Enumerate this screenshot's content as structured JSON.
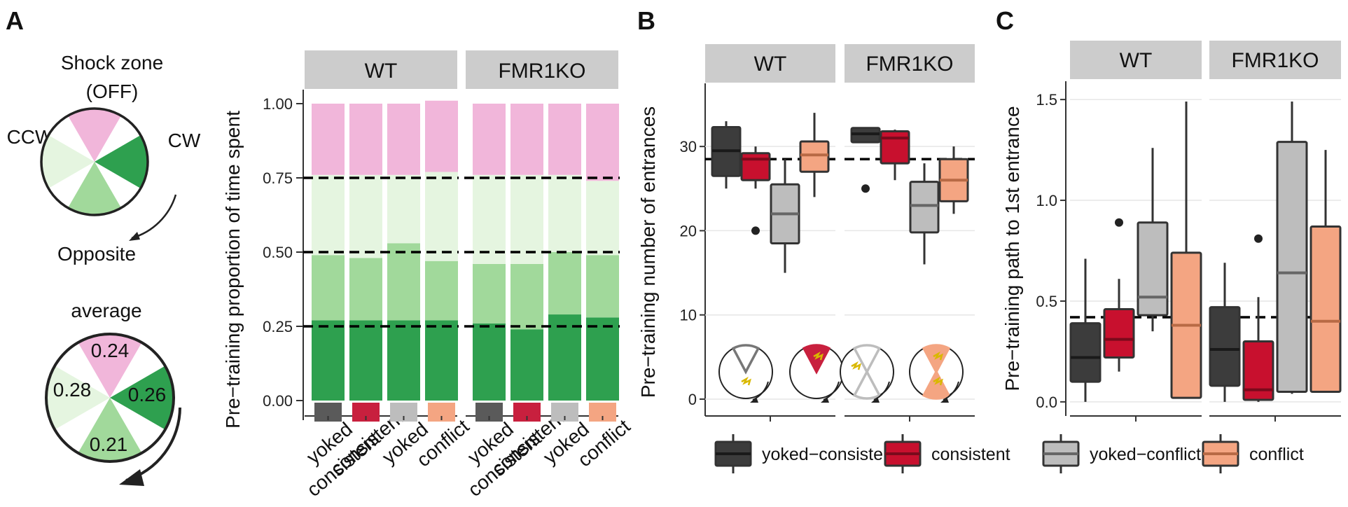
{
  "panels": {
    "a": "A",
    "b": "B",
    "c": "C"
  },
  "panel_a": {
    "diagram_title": "Shock zone (OFF)",
    "diagram_title_line1": "Shock zone",
    "diagram_title_line2": "(OFF)",
    "label_ccw": "CCW",
    "label_cw": "CW",
    "label_opposite": "Opposite",
    "average_title": "average",
    "average_values": {
      "shock": "0.24",
      "ccw": "0.28",
      "cw": "0.26",
      "opposite": "0.21"
    },
    "colors": {
      "shock": "#f1b6da",
      "cw": "#2ea04f",
      "opposite": "#a1d99b",
      "ccw": "#e5f5e0"
    }
  },
  "legend": {
    "items": [
      {
        "label": "yoked−consistent",
        "color": "#3c3c3c"
      },
      {
        "label": "consistent",
        "color": "#c8102e"
      },
      {
        "label": "yoked−conflict",
        "color": "#bdbdbd"
      },
      {
        "label": "conflict",
        "color": "#f4a582"
      }
    ]
  },
  "chart_data": [
    {
      "type": "bar",
      "stacked": true,
      "facets": [
        "WT",
        "FMR1KO"
      ],
      "categories": [
        "yoked\nconsistent",
        "consistent",
        "yoked",
        "conflict"
      ],
      "category_line1": [
        "yoked",
        "consistent",
        "yoked",
        "conflict"
      ],
      "category_line2": [
        "consistent",
        "",
        "",
        ""
      ],
      "category_colors": [
        "#5a5a5a",
        "#c8203e",
        "#bdbdbd",
        "#f4a582"
      ],
      "stack_order_bottom_to_top": [
        "CW",
        "Opposite",
        "CCW",
        "Shock"
      ],
      "stack_colors": [
        "#2ea04f",
        "#a1d99b",
        "#e5f5e0",
        "#f1b6da"
      ],
      "series": [
        {
          "facet": "WT",
          "values": [
            [
              0.27,
              0.22,
              0.27,
              0.24
            ],
            [
              0.27,
              0.21,
              0.28,
              0.24
            ],
            [
              0.27,
              0.26,
              0.23,
              0.24
            ],
            [
              0.27,
              0.2,
              0.3,
              0.24
            ]
          ]
        },
        {
          "facet": "FMR1KO",
          "values": [
            [
              0.26,
              0.2,
              0.3,
              0.24
            ],
            [
              0.24,
              0.22,
              0.3,
              0.24
            ],
            [
              0.29,
              0.21,
              0.26,
              0.24
            ],
            [
              0.28,
              0.21,
              0.25,
              0.26
            ]
          ]
        }
      ],
      "reference_lines": [
        0.25,
        0.5,
        0.75
      ],
      "ylabel": "Pre−training proportion of time spent",
      "yticks": [
        "0.00",
        "0.25",
        "0.50",
        "0.75",
        "1.00"
      ],
      "ylim": [
        0,
        1
      ]
    },
    {
      "type": "box",
      "facets": [
        "WT",
        "FMR1KO"
      ],
      "groups": [
        "yoked−consistent",
        "consistent",
        "yoked−conflict",
        "conflict"
      ],
      "ylabel": "Pre−training number of entrances",
      "yticks": [
        "0",
        "10",
        "20",
        "30"
      ],
      "ylim": [
        -2,
        37
      ],
      "reference_line": 28.5,
      "boxes": [
        {
          "facet": "WT",
          "group": "yoked−consistent",
          "min": 25,
          "q1": 26.5,
          "median": 29.5,
          "q3": 32.3,
          "max": 33,
          "outliers": []
        },
        {
          "facet": "WT",
          "group": "consistent",
          "min": 25,
          "q1": 26,
          "median": 28.5,
          "q3": 29.2,
          "max": 30,
          "outliers": [
            20
          ]
        },
        {
          "facet": "WT",
          "group": "yoked−conflict",
          "min": 15,
          "q1": 18.5,
          "median": 22,
          "q3": 25.5,
          "max": 28.5,
          "outliers": []
        },
        {
          "facet": "WT",
          "group": "conflict",
          "min": 24,
          "q1": 27,
          "median": 29,
          "q3": 30.6,
          "max": 34,
          "outliers": []
        },
        {
          "facet": "FMR1KO",
          "group": "yoked−consistent",
          "min": 30.5,
          "q1": 30.5,
          "median": 31.5,
          "q3": 32.2,
          "max": 32.2,
          "outliers": [
            25
          ]
        },
        {
          "facet": "FMR1KO",
          "group": "consistent",
          "min": 26,
          "q1": 28,
          "median": 31,
          "q3": 31.8,
          "max": 32,
          "outliers": []
        },
        {
          "facet": "FMR1KO",
          "group": "yoked−conflict",
          "min": 16,
          "q1": 19.8,
          "median": 23,
          "q3": 25.8,
          "max": 28,
          "outliers": []
        },
        {
          "facet": "FMR1KO",
          "group": "conflict",
          "min": 22,
          "q1": 23.5,
          "median": 26,
          "q3": 28.5,
          "max": 30,
          "outliers": []
        }
      ]
    },
    {
      "type": "box",
      "facets": [
        "WT",
        "FMR1KO"
      ],
      "groups": [
        "yoked−consistent",
        "consistent",
        "yoked−conflict",
        "conflict"
      ],
      "ylabel": "Pre−training path to 1st entrance",
      "yticks": [
        "0.0",
        "0.5",
        "1.0",
        "1.5"
      ],
      "ylim": [
        -0.07,
        1.57
      ],
      "reference_line": 0.42,
      "boxes": [
        {
          "facet": "WT",
          "group": "yoked−consistent",
          "min": 0,
          "q1": 0.1,
          "median": 0.22,
          "q3": 0.39,
          "max": 0.71,
          "outliers": []
        },
        {
          "facet": "WT",
          "group": "consistent",
          "min": 0.15,
          "q1": 0.22,
          "median": 0.31,
          "q3": 0.46,
          "max": 0.61,
          "outliers": [
            0.89
          ]
        },
        {
          "facet": "WT",
          "group": "yoked−conflict",
          "min": 0.35,
          "q1": 0.43,
          "median": 0.52,
          "q3": 0.89,
          "max": 1.26,
          "outliers": []
        },
        {
          "facet": "WT",
          "group": "conflict",
          "min": 0.02,
          "q1": 0.02,
          "median": 0.38,
          "q3": 0.74,
          "max": 1.49,
          "outliers": []
        },
        {
          "facet": "FMR1KO",
          "group": "yoked−consistent",
          "min": 0,
          "q1": 0.08,
          "median": 0.26,
          "q3": 0.47,
          "max": 0.69,
          "outliers": []
        },
        {
          "facet": "FMR1KO",
          "group": "consistent",
          "min": 0,
          "q1": 0.01,
          "median": 0.06,
          "q3": 0.3,
          "max": 0.52,
          "outliers": [
            0.81
          ]
        },
        {
          "facet": "FMR1KO",
          "group": "yoked−conflict",
          "min": 0.04,
          "q1": 0.05,
          "median": 0.64,
          "q3": 1.29,
          "max": 1.49,
          "outliers": []
        },
        {
          "facet": "FMR1KO",
          "group": "conflict",
          "min": 0.05,
          "q1": 0.05,
          "median": 0.4,
          "q3": 0.87,
          "max": 1.25,
          "outliers": []
        }
      ]
    }
  ]
}
